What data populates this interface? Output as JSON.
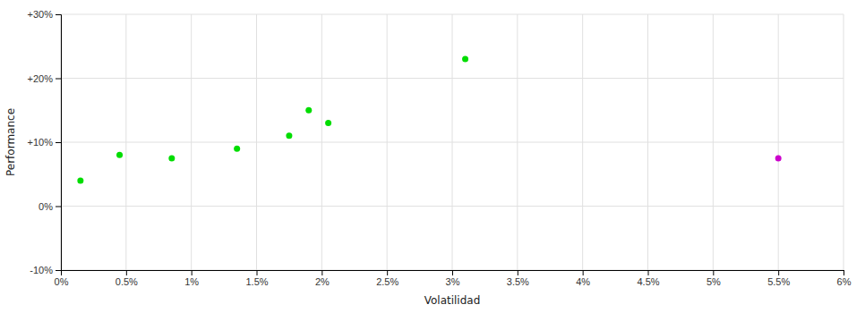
{
  "chart_data": {
    "type": "scatter",
    "xlabel": "Volatilidad",
    "ylabel": "Performance",
    "series": [
      {
        "color": "#00dd00",
        "x": [
          0.15,
          0.45,
          0.85,
          1.35,
          1.75,
          1.9,
          2.05,
          3.1
        ],
        "values": [
          4.0,
          8.0,
          7.5,
          9.0,
          11.0,
          15.0,
          13.0,
          23.0
        ]
      },
      {
        "color": "#cc00cc",
        "x": [
          5.5
        ],
        "values": [
          7.5
        ]
      }
    ],
    "xlim": [
      0,
      6.0
    ],
    "ylim": [
      -10,
      30
    ],
    "xticks": [
      {
        "value": 0,
        "label": "0%"
      },
      {
        "value": 0.5,
        "label": "0.5%"
      },
      {
        "value": 1.0,
        "label": "1%"
      },
      {
        "value": 1.5,
        "label": "1.5%"
      },
      {
        "value": 2.0,
        "label": "2%"
      },
      {
        "value": 2.5,
        "label": "2.5%"
      },
      {
        "value": 3.0,
        "label": "3%"
      },
      {
        "value": 3.5,
        "label": "3.5%"
      },
      {
        "value": 4.0,
        "label": "4%"
      },
      {
        "value": 4.5,
        "label": "4.5%"
      },
      {
        "value": 5.0,
        "label": "5%"
      },
      {
        "value": 5.5,
        "label": "5.5%"
      },
      {
        "value": 6.0,
        "label": "6%"
      }
    ],
    "yticks": [
      {
        "value": -10,
        "label": "-10%"
      },
      {
        "value": 0,
        "label": "0%"
      },
      {
        "value": 10,
        "label": "+10%"
      },
      {
        "value": 20,
        "label": "+20%"
      },
      {
        "value": 30,
        "label": "+30%"
      }
    ],
    "grid": true
  }
}
